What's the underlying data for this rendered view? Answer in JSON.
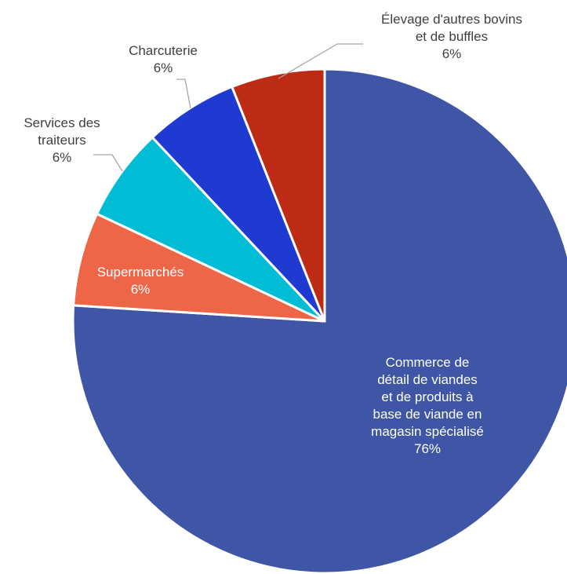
{
  "chart_data": {
    "type": "pie",
    "title": "",
    "slices": [
      {
        "category": "Commerce de détail de viandes et de produits à base de viande en magasin spécialisé",
        "label_lines": [
          "Commerce de",
          "détail de viandes",
          "et de produits à",
          "base de viande en",
          "magasin spécialisé"
        ],
        "value_label": "76%",
        "value": 76,
        "color": "#3F55A5"
      },
      {
        "category": "Supermarchés",
        "label_lines": [
          "Supermarchés"
        ],
        "value_label": "6%",
        "value": 6,
        "color": "#EE6648"
      },
      {
        "category": "Services des traiteurs",
        "label_lines": [
          "Services des",
          "traiteurs"
        ],
        "value_label": "6%",
        "value": 6,
        "color": "#00BCD4"
      },
      {
        "category": "Charcuterie",
        "label_lines": [
          "Charcuterie"
        ],
        "value_label": "6%",
        "value": 6,
        "color": "#1E3AD0"
      },
      {
        "category": "Élevage d'autres bovins et de buffles",
        "label_lines": [
          "Élevage d'autres bovins",
          "et de buffles"
        ],
        "value_label": "6%",
        "value": 6,
        "color": "#BD2B14"
      }
    ],
    "start_angle_deg": 0,
    "direction": "clockwise"
  }
}
